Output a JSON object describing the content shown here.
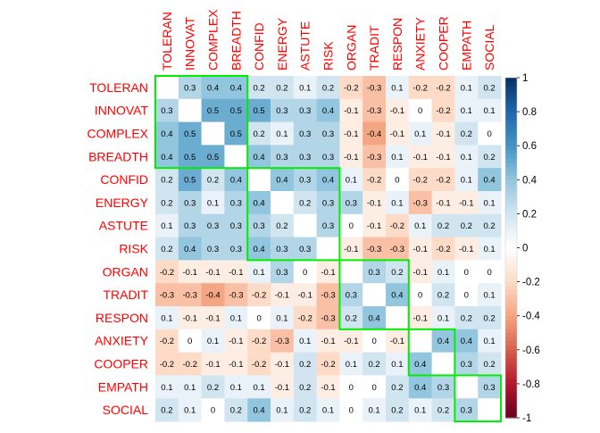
{
  "chart_data": {
    "type": "heatmap",
    "variables": [
      "TOLERAN",
      "INNOVAT",
      "COMPLEX",
      "BREADTH",
      "CONFID",
      "ENERGY",
      "ASTUTE",
      "RISK",
      "ORGAN",
      "TRADIT",
      "RESPON",
      "ANXIETY",
      "COOPER",
      "EMPATH",
      "SOCIAL"
    ],
    "cells": [
      [
        "",
        "0.3",
        "0.4",
        "0.4",
        "0.2",
        "0.2",
        "0.1",
        "0.2",
        "-0.2",
        "-0.3",
        "0.1",
        "-0.2",
        "-0.2",
        "0.1",
        "0.2"
      ],
      [
        "0.3",
        "",
        "0.5",
        "0.5",
        "0.5",
        "0.3",
        "0.3",
        "0.4",
        "-0.1",
        "-0.3",
        "-0.1",
        "0",
        "-0.2",
        "0.1",
        "0.1"
      ],
      [
        "0.4",
        "0.5",
        "",
        "0.5",
        "0.2",
        "0.1",
        "0.3",
        "0.3",
        "-0.1",
        "-0.4",
        "-0.1",
        "0.1",
        "-0.1",
        "0.2",
        "0"
      ],
      [
        "0.4",
        "0.5",
        "0.5",
        "",
        "0.4",
        "0.3",
        "0.3",
        "0.3",
        "-0.1",
        "-0.3",
        "0.1",
        "-0.1",
        "-0.1",
        "0.1",
        "0.2"
      ],
      [
        "0.2",
        "0.5",
        "0.2",
        "0.4",
        "",
        "0.4",
        "0.3",
        "0.4",
        "0.1",
        "-0.2",
        "0",
        "-0.2",
        "-0.2",
        "0.1",
        "0.4"
      ],
      [
        "0.2",
        "0.3",
        "0.1",
        "0.3",
        "0.4",
        "",
        "0.2",
        "0.3",
        "0.3",
        "-0.1",
        "0.1",
        "-0.3",
        "-0.1",
        "-0.1",
        "0.1"
      ],
      [
        "0.1",
        "0.3",
        "0.3",
        "0.3",
        "0.3",
        "0.2",
        "",
        "0.3",
        "0",
        "-0.1",
        "-0.2",
        "0.1",
        "0.2",
        "0.2",
        "0.2"
      ],
      [
        "0.2",
        "0.4",
        "0.3",
        "0.3",
        "0.4",
        "0.3",
        "0.3",
        "",
        "-0.1",
        "-0.3",
        "-0.3",
        "-0.1",
        "-0.2",
        "-0.1",
        "0.1"
      ],
      [
        "-0.2",
        "-0.1",
        "-0.1",
        "-0.1",
        "0.1",
        "0.3",
        "0",
        "-0.1",
        "",
        "0.3",
        "0.2",
        "-0.1",
        "0.1",
        "0",
        "0"
      ],
      [
        "-0.3",
        "-0.3",
        "-0.4",
        "-0.3",
        "-0.2",
        "-0.1",
        "-0.1",
        "-0.3",
        "0.3",
        "",
        "0.4",
        "0",
        "0.2",
        "0",
        "0.1"
      ],
      [
        "0.1",
        "-0.1",
        "-0.1",
        "0.1",
        "0",
        "0.1",
        "-0.2",
        "-0.3",
        "0.2",
        "0.4",
        "",
        "-0.1",
        "0.1",
        "0.2",
        "0.2"
      ],
      [
        "-0.2",
        "0",
        "0.1",
        "-0.1",
        "-0.2",
        "-0.3",
        "0.1",
        "-0.1",
        "-0.1",
        "0",
        "-0.1",
        "",
        "0.4",
        "0.4",
        "0.1"
      ],
      [
        "-0.2",
        "-0.2",
        "-0.1",
        "-0.1",
        "-0.2",
        "-0.1",
        "0.2",
        "-0.2",
        "0.1",
        "0.2",
        "0.1",
        "0.4",
        "",
        "0.3",
        "0.2"
      ],
      [
        "0.1",
        "0.1",
        "0.2",
        "0.1",
        "0.1",
        "-0.1",
        "0.2",
        "-0.1",
        "0",
        "0",
        "0.2",
        "0.4",
        "0.3",
        "",
        "0.3"
      ],
      [
        "0.2",
        "0.1",
        "0",
        "0.2",
        "0.4",
        "0.1",
        "0.2",
        "0.1",
        "0",
        "0.1",
        "0.2",
        "0.1",
        "0.2",
        "0.3",
        ""
      ]
    ],
    "clusters": [
      [
        0,
        3
      ],
      [
        4,
        7
      ],
      [
        8,
        10
      ],
      [
        11,
        12
      ],
      [
        13,
        14
      ]
    ],
    "color_scale": {
      "range": [
        -1,
        1
      ],
      "ticks": [
        "1",
        "0.8",
        "0.6",
        "0.4",
        "0.2",
        "0",
        "-0.2",
        "-0.4",
        "-0.6",
        "-0.8",
        "-1"
      ],
      "negative_color": "#67001F",
      "neutral_color": "#FFFFFF",
      "positive_color": "#053061"
    },
    "label_color": "#FF0000",
    "cluster_box_color": "#00EE00"
  }
}
